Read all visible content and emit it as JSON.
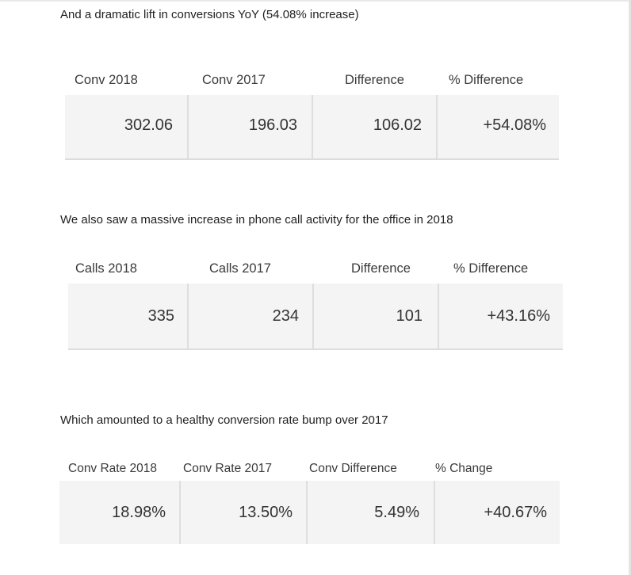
{
  "intro": {
    "conversions": "And a dramatic lift in conversions YoY (54.08% increase)",
    "calls": "We also saw a massive increase in phone call activity for the office in 2018",
    "rate": "Which amounted to a healthy conversion rate bump over 2017"
  },
  "tables": {
    "conversions": {
      "headers": [
        "Conv 2018",
        "Conv 2017",
        "Difference",
        "% Difference"
      ],
      "values": [
        "302.06",
        "196.03",
        "106.02",
        "+54.08%"
      ]
    },
    "calls": {
      "headers": [
        "Calls 2018",
        "Calls 2017",
        "Difference",
        "% Difference"
      ],
      "values": [
        "335",
        "234",
        "101",
        "+43.16%"
      ]
    },
    "rate": {
      "headers": [
        "Conv Rate 2018",
        "Conv Rate 2017",
        "Conv Difference",
        "% Change"
      ],
      "values": [
        "18.98%",
        "13.50%",
        "5.49%",
        "+40.67%"
      ]
    }
  }
}
